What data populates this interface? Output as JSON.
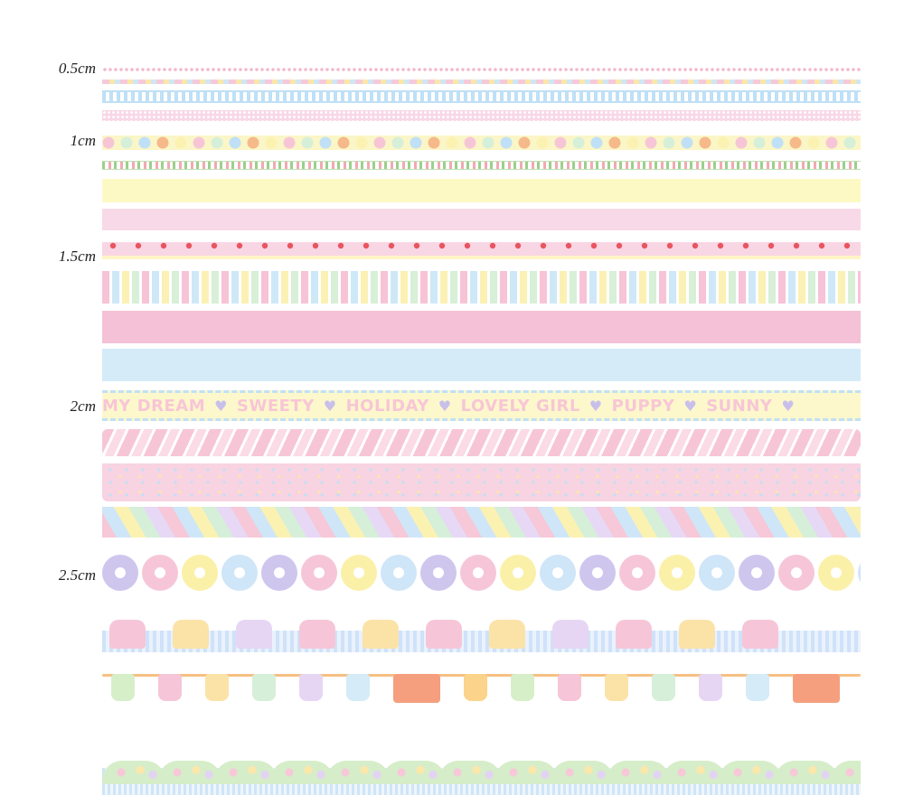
{
  "size_labels": [
    "0.5cm",
    "1cm",
    "1.5cm",
    "2cm",
    "2.5cm"
  ],
  "words_tape": [
    "MY DREAM",
    "SWEETY",
    "HOLIDAY",
    "LOVELY GIRL",
    "PUPPY",
    "SUNNY"
  ],
  "heart_glyph": "♥",
  "colors": {
    "pastel_pink": "#f8d3e2",
    "pastel_yellow": "#fdf9c4",
    "pastel_blue": "#d5ebf8",
    "strong_pink": "#f5c1d6",
    "pastel_purple": "#d6cbf0",
    "pastel_green": "#d6efd9",
    "peach": "#f7b98e"
  },
  "circle_sequence": [
    "#f7c6d6",
    "#d6efd9",
    "#bfe0f6",
    "#f6b98a",
    "#fbf2b2"
  ],
  "flower_sequence": [
    "#cfc6ee",
    "#f6c6d8",
    "#fbf0a8",
    "#cfe5f8"
  ],
  "cake_sequence": [
    "#f6c6d8",
    "#fbe3a8",
    "#e6d6f4",
    "#f6c6d8",
    "#fbe3a8"
  ],
  "cloth_sequence": [
    "#d6efc9",
    "#f6c6d8",
    "#fbe3a8",
    "#d6efd9",
    "#e6d6f4",
    "#d5ebf8",
    "#f59f7e",
    "#fbd38a"
  ]
}
